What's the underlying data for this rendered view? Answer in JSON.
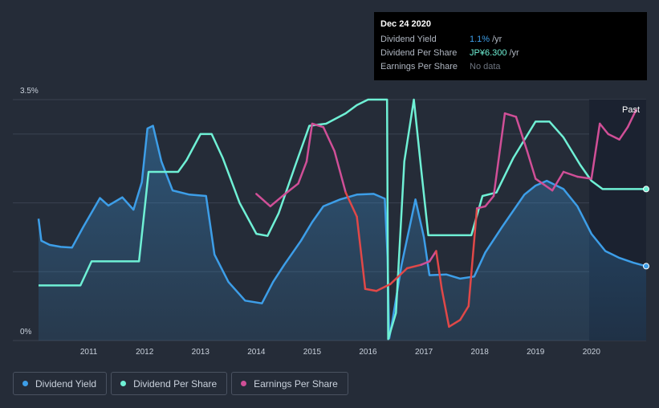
{
  "tooltip": {
    "date": "Dec 24 2020",
    "rows": [
      {
        "label": "Dividend Yield",
        "value": "1.1%",
        "unit": "/yr",
        "color": "#3d9ee8"
      },
      {
        "label": "Dividend Per Share",
        "value": "JP¥6.300",
        "unit": "/yr",
        "color": "#6ff0d5"
      },
      {
        "label": "Earnings Per Share",
        "value": "No data",
        "unit": "",
        "color": "#6d747f"
      }
    ]
  },
  "legend": [
    {
      "label": "Dividend Yield",
      "color": "#3d9ee8"
    },
    {
      "label": "Dividend Per Share",
      "color": "#6ff0d5"
    },
    {
      "label": "Earnings Per Share",
      "color": "#d04f97"
    }
  ],
  "colors": {
    "background": "#252c38",
    "past_band": "#1b2230",
    "grid": "#3a4250",
    "dividend_yield": "#3d9ee8",
    "dividend_per_share": "#6ff0d5",
    "eps_positive": "#d04f97",
    "eps_negative": "#e04848"
  },
  "chart_data": {
    "type": "line",
    "y_axis": {
      "top_label": "3.5%",
      "bottom_label": "0%",
      "ylim": [
        0,
        3.5
      ],
      "grid_values": [
        0,
        1,
        2,
        3,
        3.5
      ]
    },
    "x_ticks": [
      "2011",
      "2012",
      "2013",
      "2014",
      "2015",
      "2016",
      "2017",
      "2018",
      "2019",
      "2020"
    ],
    "x_range": [
      2010.1,
      2020.98
    ],
    "past_label": "Past",
    "past_start": 2019.96,
    "series": [
      {
        "name": "Dividend Yield",
        "key": "dividend_yield",
        "filled": true,
        "points": [
          [
            2010.1,
            1.77
          ],
          [
            2010.15,
            1.45
          ],
          [
            2010.3,
            1.39
          ],
          [
            2010.5,
            1.36
          ],
          [
            2010.7,
            1.35
          ],
          [
            2010.9,
            1.65
          ],
          [
            2011.1,
            1.93
          ],
          [
            2011.2,
            2.07
          ],
          [
            2011.35,
            1.96
          ],
          [
            2011.6,
            2.08
          ],
          [
            2011.8,
            1.9
          ],
          [
            2011.95,
            2.3
          ],
          [
            2012.05,
            3.08
          ],
          [
            2012.15,
            3.12
          ],
          [
            2012.3,
            2.6
          ],
          [
            2012.5,
            2.18
          ],
          [
            2012.8,
            2.12
          ],
          [
            2013.1,
            2.1
          ],
          [
            2013.25,
            1.25
          ],
          [
            2013.5,
            0.85
          ],
          [
            2013.8,
            0.58
          ],
          [
            2014.1,
            0.54
          ],
          [
            2014.3,
            0.85
          ],
          [
            2014.5,
            1.1
          ],
          [
            2014.8,
            1.45
          ],
          [
            2015.0,
            1.72
          ],
          [
            2015.2,
            1.95
          ],
          [
            2015.5,
            2.05
          ],
          [
            2015.8,
            2.12
          ],
          [
            2016.1,
            2.13
          ],
          [
            2016.3,
            2.06
          ],
          [
            2016.35,
            1.2
          ],
          [
            2016.38,
            0.03
          ],
          [
            2016.45,
            0.35
          ],
          [
            2016.6,
            1.1
          ],
          [
            2016.85,
            2.05
          ],
          [
            2017.0,
            1.5
          ],
          [
            2017.1,
            0.95
          ],
          [
            2017.4,
            0.96
          ],
          [
            2017.65,
            0.9
          ],
          [
            2017.9,
            0.93
          ],
          [
            2018.1,
            1.28
          ],
          [
            2018.4,
            1.65
          ],
          [
            2018.8,
            2.12
          ],
          [
            2019.0,
            2.25
          ],
          [
            2019.2,
            2.32
          ],
          [
            2019.5,
            2.2
          ],
          [
            2019.75,
            1.95
          ],
          [
            2020.0,
            1.55
          ],
          [
            2020.25,
            1.3
          ],
          [
            2020.5,
            1.2
          ],
          [
            2020.75,
            1.13
          ],
          [
            2020.98,
            1.08
          ]
        ]
      },
      {
        "name": "Dividend Per Share",
        "key": "dividend_per_share",
        "filled": false,
        "points": [
          [
            2010.1,
            0.8
          ],
          [
            2010.85,
            0.8
          ],
          [
            2011.05,
            1.15
          ],
          [
            2011.9,
            1.15
          ],
          [
            2012.07,
            2.45
          ],
          [
            2012.6,
            2.45
          ],
          [
            2012.75,
            2.62
          ],
          [
            2013.0,
            3.0
          ],
          [
            2013.2,
            3.0
          ],
          [
            2013.4,
            2.65
          ],
          [
            2013.7,
            2.0
          ],
          [
            2014.0,
            1.55
          ],
          [
            2014.2,
            1.52
          ],
          [
            2014.4,
            1.85
          ],
          [
            2014.7,
            2.55
          ],
          [
            2014.95,
            3.12
          ],
          [
            2015.25,
            3.15
          ],
          [
            2015.6,
            3.3
          ],
          [
            2015.8,
            3.42
          ],
          [
            2016.0,
            3.5
          ],
          [
            2016.34,
            3.5
          ],
          [
            2016.36,
            0.02
          ],
          [
            2016.5,
            0.4
          ],
          [
            2016.65,
            2.6
          ],
          [
            2016.82,
            3.5
          ],
          [
            2016.95,
            2.5
          ],
          [
            2017.08,
            1.53
          ],
          [
            2017.5,
            1.53
          ],
          [
            2017.85,
            1.53
          ],
          [
            2018.05,
            2.1
          ],
          [
            2018.3,
            2.15
          ],
          [
            2018.6,
            2.65
          ],
          [
            2019.0,
            3.18
          ],
          [
            2019.25,
            3.18
          ],
          [
            2019.5,
            2.95
          ],
          [
            2019.8,
            2.55
          ],
          [
            2020.0,
            2.32
          ],
          [
            2020.2,
            2.2
          ],
          [
            2020.98,
            2.2
          ]
        ]
      },
      {
        "name": "Earnings Per Share",
        "key": "eps",
        "filled": false,
        "points": [
          [
            2014.0,
            2.13
          ],
          [
            2014.25,
            1.95
          ],
          [
            2014.5,
            2.12
          ],
          [
            2014.75,
            2.28
          ],
          [
            2014.9,
            2.6
          ],
          [
            2015.0,
            3.15
          ],
          [
            2015.2,
            3.1
          ],
          [
            2015.4,
            2.75
          ],
          [
            2015.6,
            2.15
          ],
          [
            2015.8,
            1.8
          ],
          [
            2015.95,
            0.75
          ],
          [
            2016.15,
            0.72
          ],
          [
            2016.4,
            0.82
          ],
          [
            2016.7,
            1.05
          ],
          [
            2016.95,
            1.1
          ],
          [
            2017.1,
            1.15
          ],
          [
            2017.22,
            1.3
          ],
          [
            2017.32,
            0.75
          ],
          [
            2017.45,
            0.2
          ],
          [
            2017.65,
            0.3
          ],
          [
            2017.8,
            0.5
          ],
          [
            2017.95,
            1.92
          ],
          [
            2018.1,
            1.95
          ],
          [
            2018.25,
            2.1
          ],
          [
            2018.45,
            3.3
          ],
          [
            2018.65,
            3.25
          ],
          [
            2018.85,
            2.75
          ],
          [
            2019.0,
            2.35
          ],
          [
            2019.3,
            2.18
          ],
          [
            2019.5,
            2.45
          ],
          [
            2019.75,
            2.38
          ],
          [
            2020.0,
            2.35
          ],
          [
            2020.15,
            3.15
          ],
          [
            2020.3,
            3.0
          ],
          [
            2020.5,
            2.92
          ],
          [
            2020.65,
            3.1
          ],
          [
            2020.8,
            3.35
          ]
        ]
      }
    ]
  }
}
